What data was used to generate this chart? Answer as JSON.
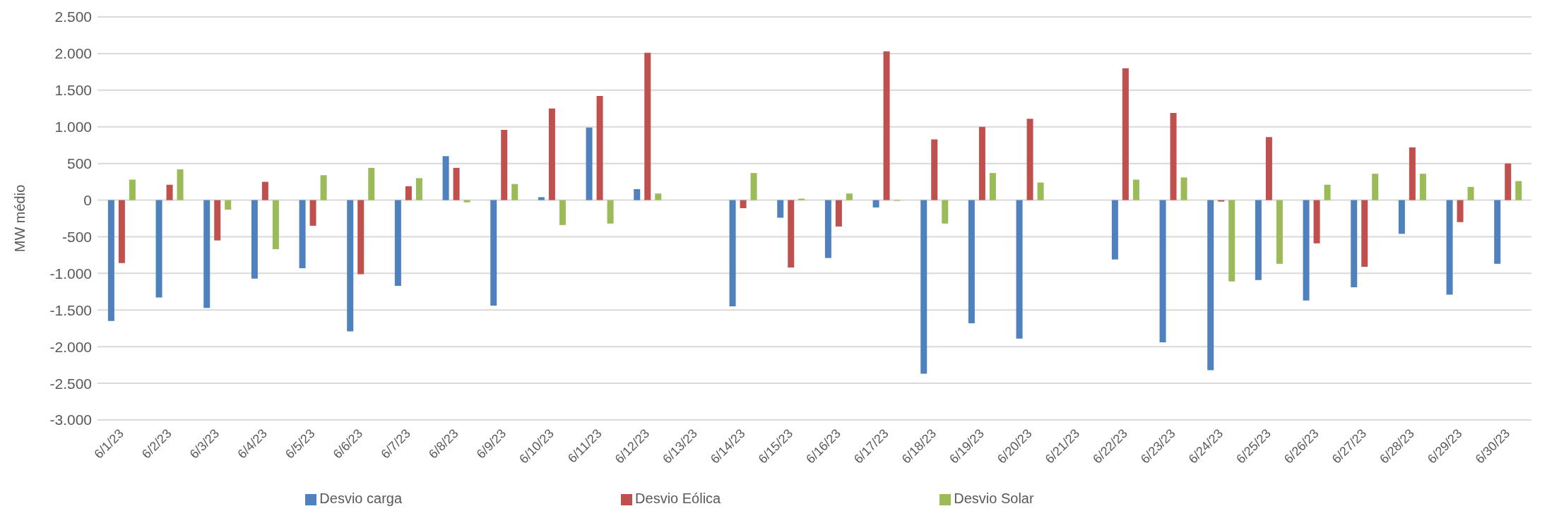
{
  "chart_data": {
    "type": "bar",
    "ylabel": "MW médio",
    "categories": [
      "6/1/23",
      "6/2/23",
      "6/3/23",
      "6/4/23",
      "6/5/23",
      "6/6/23",
      "6/7/23",
      "6/8/23",
      "6/9/23",
      "6/10/23",
      "6/11/23",
      "6/12/23",
      "6/13/23",
      "6/14/23",
      "6/15/23",
      "6/16/23",
      "6/17/23",
      "6/18/23",
      "6/19/23",
      "6/20/23",
      "6/21/23",
      "6/22/23",
      "6/23/23",
      "6/24/23",
      "6/25/23",
      "6/26/23",
      "6/27/23",
      "6/28/23",
      "6/29/23",
      "6/30/23"
    ],
    "series": [
      {
        "name": "Desvio carga",
        "color": "#4f81bd",
        "values": [
          -1650,
          -1330,
          -1470,
          -1070,
          -930,
          -1790,
          -1170,
          600,
          -1440,
          40,
          990,
          150,
          null,
          -1450,
          -240,
          -790,
          -100,
          -2370,
          -1680,
          -1890,
          null,
          -810,
          -1940,
          -2320,
          -1090,
          -1370,
          -1190,
          -460,
          -1290,
          -870
        ]
      },
      {
        "name": "Desvio Eólica",
        "color": "#c0504d",
        "values": [
          -860,
          210,
          -550,
          250,
          -350,
          -1010,
          190,
          440,
          960,
          1250,
          1420,
          2010,
          null,
          -110,
          -920,
          -360,
          2030,
          830,
          1000,
          1110,
          null,
          1800,
          1190,
          -20,
          860,
          -590,
          -910,
          720,
          -300,
          500
        ]
      },
      {
        "name": "Desvio Solar",
        "color": "#9bbb59",
        "values": [
          280,
          420,
          -130,
          -670,
          340,
          440,
          300,
          -30,
          220,
          -340,
          -320,
          90,
          null,
          370,
          20,
          90,
          -10,
          -320,
          370,
          240,
          null,
          280,
          310,
          -1110,
          -870,
          210,
          360,
          360,
          180,
          260
        ]
      }
    ],
    "ylim": [
      -3000,
      2500
    ],
    "yticks": [
      {
        "value": -3000,
        "label": "-3.000"
      },
      {
        "value": -2500,
        "label": "-2.500"
      },
      {
        "value": -2000,
        "label": "-2.000"
      },
      {
        "value": -1500,
        "label": "-1.500"
      },
      {
        "value": -1000,
        "label": "-1.000"
      },
      {
        "value": -500,
        "label": "-500"
      },
      0,
      500,
      {
        "value": 1000,
        "label": "1.000"
      },
      {
        "value": 1500,
        "label": "1.500"
      },
      {
        "value": 2000,
        "label": "2.000"
      },
      {
        "value": 2500,
        "label": "2.500"
      }
    ],
    "grid": "y",
    "legend": "bottom"
  }
}
